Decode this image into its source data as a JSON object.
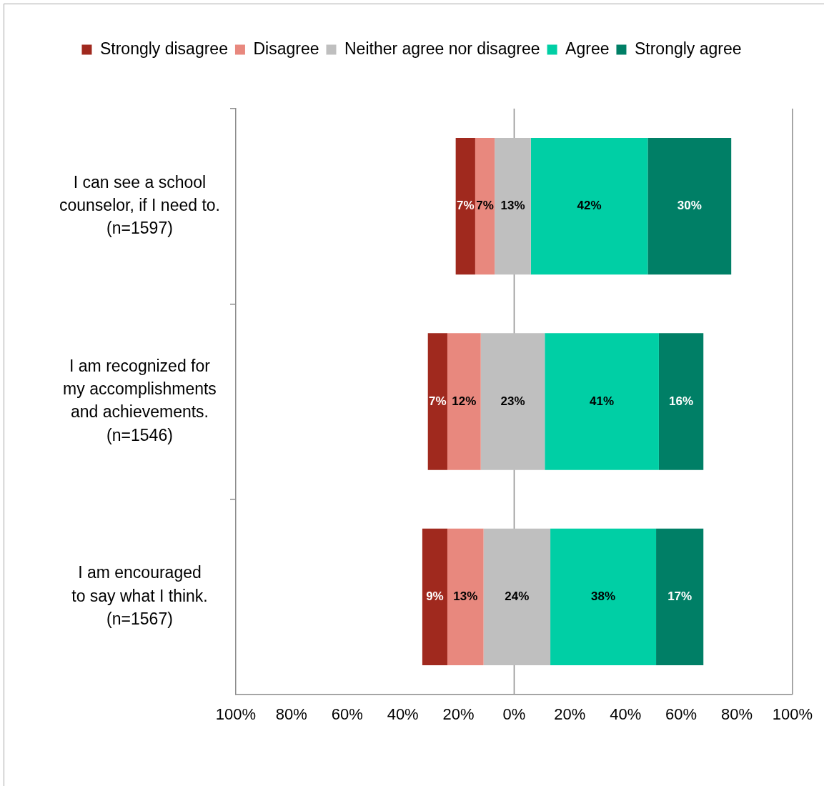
{
  "chart_data": {
    "type": "bar",
    "orientation": "horizontal",
    "categories": [
      "I can see a school\ncounselor, if I need to.\n(n=1597)",
      "I am recognized for\nmy accomplishments\nand achievements.\n(n=1546)",
      "I am encouraged\nto say what I think.\n(n=1567)"
    ],
    "series": [
      {
        "name": "Strongly disagree",
        "color": "#a0291e",
        "base": [
          -21,
          -31,
          -33
        ],
        "values": [
          7,
          7,
          9
        ],
        "value_labels": [
          "7%",
          "7%",
          "9%"
        ]
      },
      {
        "name": "Disagree",
        "color": "#e8887e",
        "base": [
          -14,
          -24,
          -24
        ],
        "values": [
          7,
          12,
          13
        ],
        "value_labels": [
          "7%",
          "12%",
          "13%"
        ]
      },
      {
        "name": "Neither agree nor disagree",
        "color": "#bfbfbf",
        "base": [
          -7,
          -12,
          -11
        ],
        "values": [
          13,
          23,
          24
        ],
        "value_labels": [
          "13%",
          "23%",
          "24%"
        ]
      },
      {
        "name": "Agree",
        "color": "#00cfa5",
        "base": [
          6,
          11,
          13
        ],
        "values": [
          42,
          41,
          38
        ],
        "value_labels": [
          "42%",
          "41%",
          "38%"
        ]
      },
      {
        "name": "Strongly agree",
        "color": "#007f66",
        "base": [
          48,
          52,
          51
        ],
        "values": [
          30,
          16,
          17
        ],
        "value_labels": [
          "30%",
          "16%",
          "17%"
        ]
      }
    ],
    "xlim": [
      -100,
      100
    ],
    "xticks": [
      {
        "value": -100,
        "label": "100%"
      },
      {
        "value": -80,
        "label": "80%"
      },
      {
        "value": -60,
        "label": "60%"
      },
      {
        "value": -40,
        "label": "40%"
      },
      {
        "value": -20,
        "label": "20%"
      },
      {
        "value": 0,
        "label": "0%"
      },
      {
        "value": 20,
        "label": "20%"
      },
      {
        "value": 40,
        "label": "40%"
      },
      {
        "value": 60,
        "label": "60%"
      },
      {
        "value": 80,
        "label": "80%"
      },
      {
        "value": 100,
        "label": "100%"
      }
    ],
    "ref_lines": [
      {
        "axis": "x",
        "value": 0
      }
    ],
    "grid": false,
    "legend": "top"
  }
}
